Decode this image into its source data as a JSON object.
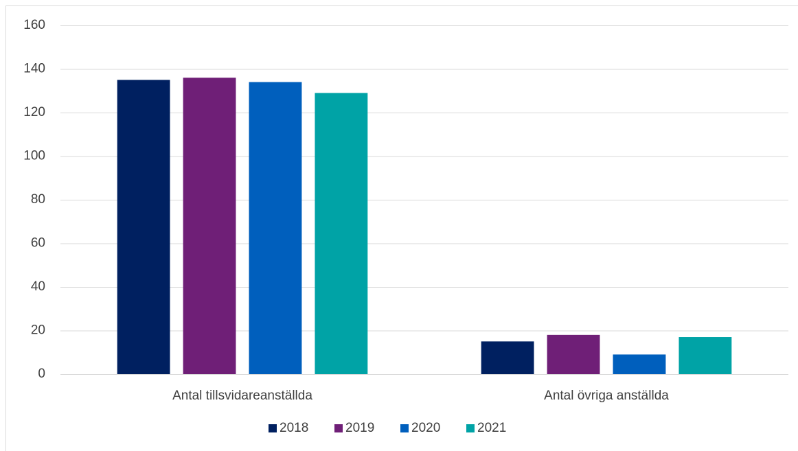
{
  "chart_data": {
    "type": "bar",
    "categories": [
      "Antal tillsvidareanställda",
      "Antal övriga anställda"
    ],
    "series": [
      {
        "name": "2018",
        "color": "#002060",
        "values": [
          135,
          15
        ]
      },
      {
        "name": "2019",
        "color": "#6f1f77",
        "values": [
          136,
          18
        ]
      },
      {
        "name": "2020",
        "color": "#005fbd",
        "values": [
          134,
          9
        ]
      },
      {
        "name": "2021",
        "color": "#00a3a6",
        "values": [
          129,
          17
        ]
      }
    ],
    "ylim": [
      0,
      160
    ],
    "yticks": [
      0,
      20,
      40,
      60,
      80,
      100,
      120,
      140,
      160
    ],
    "grid": true,
    "legend": "bottom"
  }
}
